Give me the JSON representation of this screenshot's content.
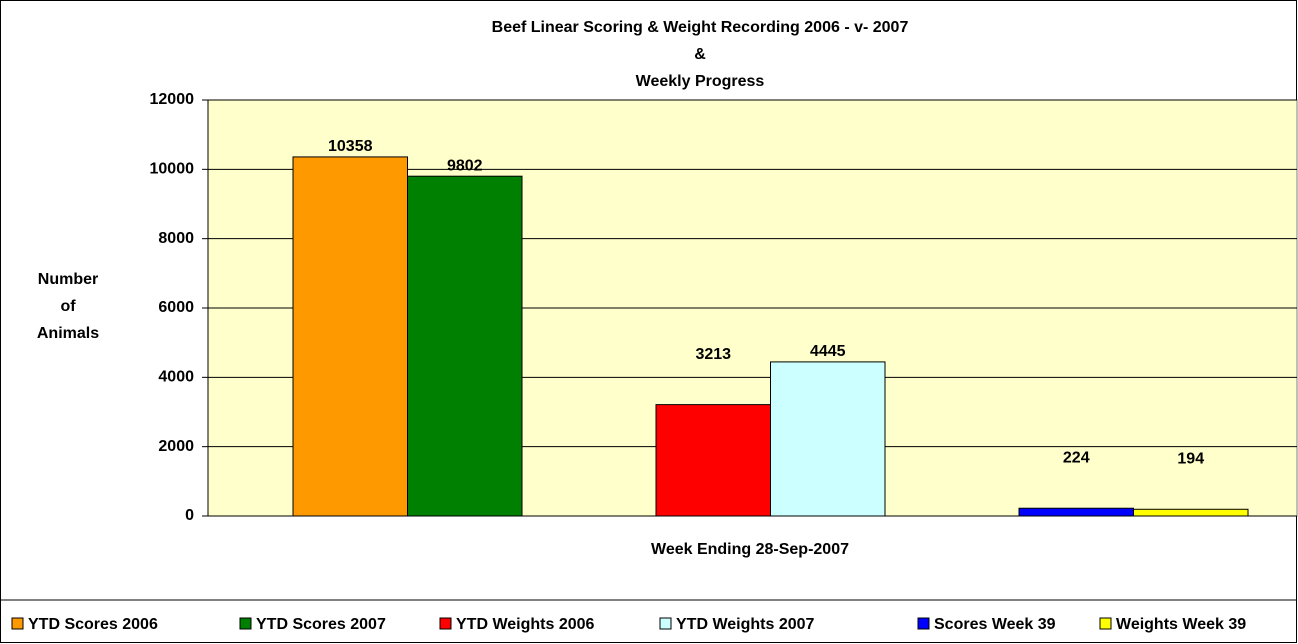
{
  "chart_data": {
    "type": "bar",
    "title": [
      "Beef Linear Scoring & Weight Recording 2006 - v- 2007",
      "&",
      "Weekly Progress"
    ],
    "y_label": [
      "Number",
      "of",
      "Animals"
    ],
    "x_label": "Week Ending 28-Sep-2007",
    "categories": [
      null,
      null,
      null
    ],
    "series": [
      {
        "name": "YTD Scores 2006",
        "color": "#ff9900",
        "values": [
          10358,
          null,
          null
        ]
      },
      {
        "name": "YTD Scores 2007",
        "color": "#008000",
        "values": [
          9802,
          null,
          null
        ]
      },
      {
        "name": "YTD Weights 2006",
        "color": "#ff0000",
        "values": [
          null,
          3213,
          null
        ]
      },
      {
        "name": "YTD Weights 2007",
        "color": "#ccffff",
        "values": [
          null,
          4445,
          null
        ]
      },
      {
        "name": "Scores Week 39",
        "color": "#0000ff",
        "values": [
          null,
          null,
          224
        ]
      },
      {
        "name": "Weights Week 39",
        "color": "#ffff00",
        "values": [
          null,
          null,
          194
        ]
      }
    ],
    "ylim": [
      0,
      12000
    ],
    "yticks": [
      0,
      2000,
      4000,
      6000,
      8000,
      10000,
      12000
    ],
    "grid": true,
    "legend": "bottom"
  }
}
